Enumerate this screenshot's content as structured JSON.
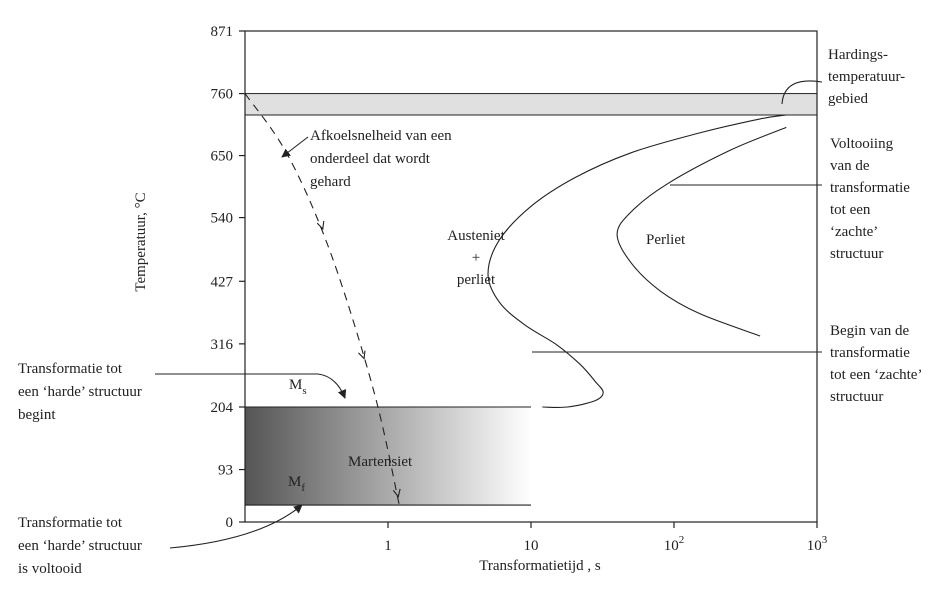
{
  "chart_data": {
    "type": "line",
    "title": "",
    "xlabel": "Transformatietijd , s",
    "ylabel": "Temperatuur, °C",
    "x_scale": "log",
    "xlim": [
      0.1,
      1000
    ],
    "ylim": [
      0,
      871
    ],
    "x_ticks": [
      {
        "value": 1,
        "label": "1"
      },
      {
        "value": 10,
        "label": "10"
      },
      {
        "value": 100,
        "label": "10",
        "sup": "2"
      },
      {
        "value": 1000,
        "label": "10",
        "sup": "3"
      }
    ],
    "y_ticks": [
      {
        "value": 0,
        "label": "0"
      },
      {
        "value": 93,
        "label": "93"
      },
      {
        "value": 204,
        "label": "204"
      },
      {
        "value": 316,
        "label": "316"
      },
      {
        "value": 427,
        "label": "427"
      },
      {
        "value": 540,
        "label": "540"
      },
      {
        "value": 650,
        "label": "650"
      },
      {
        "value": 760,
        "label": "760"
      },
      {
        "value": 871,
        "label": "871"
      }
    ],
    "hardening_band": {
      "t_min": 722,
      "t_max": 760
    },
    "martensite_band": {
      "ms": 204,
      "mf": 30,
      "t_end": 10
    },
    "series": [
      {
        "values": [
          [
            608,
            722
          ],
          [
            400,
            715
          ],
          [
            150,
            690
          ],
          [
            50,
            655
          ],
          [
            20,
            610
          ],
          [
            10,
            560
          ],
          [
            6,
            500
          ],
          [
            5,
            440
          ],
          [
            6,
            390
          ],
          [
            9,
            350
          ],
          [
            15,
            315
          ],
          [
            22,
            280
          ],
          [
            28,
            250
          ],
          [
            32,
            230
          ],
          [
            28,
            215
          ],
          [
            18,
            204
          ],
          [
            12,
            204
          ]
        ]
      },
      {
        "values": [
          [
            610,
            700
          ],
          [
            250,
            660
          ],
          [
            90,
            600
          ],
          [
            50,
            550
          ],
          [
            40,
            510
          ],
          [
            50,
            460
          ],
          [
            80,
            410
          ],
          [
            150,
            370
          ],
          [
            400,
            330
          ]
        ]
      },
      {
        "values": [
          [
            0.1,
            760
          ],
          [
            0.2,
            650
          ],
          [
            0.4,
            475
          ],
          [
            0.8,
            230
          ],
          [
            1.2,
            30
          ]
        ]
      }
    ],
    "labels": {
      "ms_main": "M",
      "ms_sub": "s",
      "mf_main": "M",
      "mf_sub": "f",
      "martensiet": "Martensiet",
      "austeniet_1": "Austeniet",
      "austeniet_2": "+",
      "austeniet_3": "perliet",
      "perliet": "Perliet",
      "cooling_1": "Afkoelsnelheid van een",
      "cooling_2": "onderdeel dat wordt",
      "cooling_3": "gehard",
      "hard_begin_1": "Transformatie tot",
      "hard_begin_2": "een ‘harde’ structuur",
      "hard_begin_3": "begint",
      "hard_end_1": "Transformatie tot",
      "hard_end_2": "een ‘harde’ structuur",
      "hard_end_3": "is voltooid",
      "hardings_1": "Hardings-",
      "hardings_2": "temperatuur-",
      "hardings_3": "gebied",
      "voltooiing_1": "Voltooiing",
      "voltooiing_2": "van de",
      "voltooiing_3": "transformatie",
      "voltooiing_4": "tot een",
      "voltooiing_5": "‘zachte’",
      "voltooiing_6": "structuur",
      "begin_1": "Begin van de",
      "begin_2": "transformatie",
      "begin_3": "tot een ‘zachte’",
      "begin_4": "structuur"
    },
    "colors": {
      "axis": "#222222",
      "band": "#e0e0e0",
      "martensite_dark": "#555555",
      "martensite_light": "#ffffff"
    }
  }
}
